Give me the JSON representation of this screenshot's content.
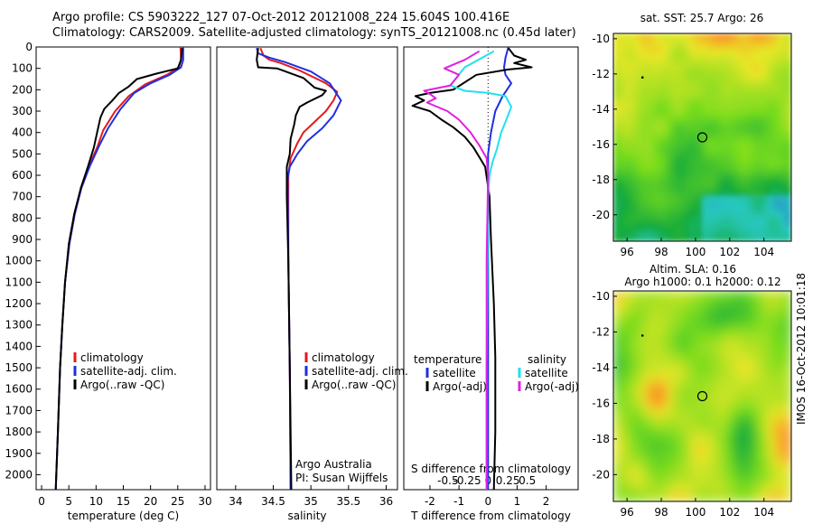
{
  "title_line1": "Argo profile: CS 5903222_127 07-Oct-2012 20121008_224 15.604S 100.416E",
  "title_line2": "Climatology: CARS2009. Satellite-adjusted climatology: synTS_20121008.nc (0.45d later)",
  "stamp": "IMOS 16-Oct-2012 10:01:18",
  "colors": {
    "climatology": "#e41a1c",
    "satellite": "#1f2fe0",
    "argo": "#000000",
    "satellite_s": "#22e0f0",
    "argo_s": "#e020e0"
  },
  "chart_data": [
    {
      "type": "line",
      "id": "temperature",
      "xlabel": "temperature (deg C)",
      "xlim": [
        -1,
        31
      ],
      "ylim": [
        2070,
        0
      ],
      "xticks": [
        0,
        5,
        10,
        15,
        20,
        25,
        30
      ],
      "yticks": [
        0,
        100,
        200,
        300,
        400,
        500,
        600,
        700,
        800,
        900,
        1000,
        1100,
        1200,
        1300,
        1400,
        1500,
        1600,
        1700,
        1800,
        1900,
        2000
      ],
      "legend": [
        "climatology",
        "satellite-adj. clim.",
        "Argo(..raw -QC)"
      ],
      "series": [
        {
          "name": "climatology",
          "color": "climatology",
          "points": [
            [
              25.5,
              0
            ],
            [
              25.6,
              60
            ],
            [
              25.2,
              95
            ],
            [
              23,
              130
            ],
            [
              19,
              175
            ],
            [
              16,
              230
            ],
            [
              13.5,
              300
            ],
            [
              11.3,
              390
            ],
            [
              10.2,
              470
            ],
            [
              8.6,
              560
            ],
            [
              7.2,
              660
            ],
            [
              6.1,
              780
            ],
            [
              5.1,
              920
            ],
            [
              4.3,
              1100
            ],
            [
              3.8,
              1300
            ],
            [
              3.4,
              1500
            ],
            [
              3.0,
              1800
            ],
            [
              2.6,
              2070
            ]
          ]
        },
        {
          "name": "satellite-adj. clim.",
          "color": "satellite",
          "points": [
            [
              26.0,
              0
            ],
            [
              26.0,
              60
            ],
            [
              25.6,
              95
            ],
            [
              23.5,
              130
            ],
            [
              20,
              170
            ],
            [
              17,
              215
            ],
            [
              14.5,
              290
            ],
            [
              12.2,
              380
            ],
            [
              10.6,
              460
            ],
            [
              8.8,
              560
            ],
            [
              7.3,
              660
            ],
            [
              6.1,
              780
            ],
            [
              5.1,
              920
            ],
            [
              4.3,
              1100
            ],
            [
              3.8,
              1300
            ],
            [
              3.4,
              1500
            ],
            [
              3.0,
              1800
            ],
            [
              2.6,
              2070
            ]
          ]
        },
        {
          "name": "Argo(..raw -QC)",
          "color": "argo",
          "points": [
            [
              25.8,
              5
            ],
            [
              25.6,
              60
            ],
            [
              25.0,
              100
            ],
            [
              21,
              125
            ],
            [
              17.5,
              150
            ],
            [
              16,
              185
            ],
            [
              14.2,
              215
            ],
            [
              13,
              250
            ],
            [
              11.5,
              290
            ],
            [
              10.8,
              330
            ],
            [
              10.2,
              400
            ],
            [
              9.6,
              470
            ],
            [
              8.5,
              560
            ],
            [
              7.2,
              660
            ],
            [
              6.0,
              780
            ],
            [
              5.0,
              920
            ],
            [
              4.3,
              1100
            ],
            [
              3.8,
              1300
            ],
            [
              3.4,
              1500
            ],
            [
              3.0,
              1800
            ],
            [
              2.6,
              2070
            ]
          ]
        }
      ]
    },
    {
      "type": "line",
      "id": "salinity",
      "xlabel": "salinity",
      "xlim": [
        33.75,
        36.15
      ],
      "ylim": [
        2070,
        0
      ],
      "xticks": [
        34,
        34.5,
        35,
        35.5,
        36
      ],
      "legend": [
        "climatology",
        "satellite-adj. clim.",
        "Argo(..raw -QC)"
      ],
      "notes": [
        "Argo Australia",
        "PI: Susan Wijffels"
      ],
      "series": [
        {
          "name": "climatology",
          "color": "climatology",
          "points": [
            [
              34.33,
              5
            ],
            [
              34.37,
              40
            ],
            [
              34.45,
              60
            ],
            [
              34.6,
              75
            ],
            [
              34.85,
              110
            ],
            [
              35.2,
              170
            ],
            [
              35.35,
              210
            ],
            [
              35.3,
              250
            ],
            [
              35.2,
              300
            ],
            [
              35.05,
              350
            ],
            [
              34.9,
              400
            ],
            [
              34.82,
              450
            ],
            [
              34.73,
              520
            ],
            [
              34.7,
              600
            ],
            [
              34.7,
              1000
            ],
            [
              34.72,
              1500
            ],
            [
              34.73,
              2070
            ]
          ]
        },
        {
          "name": "satellite-adj. clim.",
          "color": "satellite",
          "points": [
            [
              34.28,
              5
            ],
            [
              34.3,
              30
            ],
            [
              34.45,
              50
            ],
            [
              34.65,
              70
            ],
            [
              35.0,
              115
            ],
            [
              35.25,
              170
            ],
            [
              35.4,
              250
            ],
            [
              35.3,
              320
            ],
            [
              35.15,
              380
            ],
            [
              34.95,
              440
            ],
            [
              34.82,
              500
            ],
            [
              34.72,
              560
            ],
            [
              34.69,
              620
            ],
            [
              34.7,
              1000
            ],
            [
              34.72,
              1500
            ],
            [
              34.73,
              2070
            ]
          ]
        },
        {
          "name": "Argo(..raw -QC)",
          "color": "argo",
          "points": [
            [
              34.3,
              5
            ],
            [
              34.28,
              60
            ],
            [
              34.3,
              95
            ],
            [
              34.55,
              100
            ],
            [
              34.9,
              145
            ],
            [
              35.05,
              190
            ],
            [
              35.2,
              205
            ],
            [
              35.15,
              225
            ],
            [
              34.95,
              260
            ],
            [
              34.85,
              280
            ],
            [
              34.8,
              320
            ],
            [
              34.78,
              360
            ],
            [
              34.73,
              430
            ],
            [
              34.72,
              500
            ],
            [
              34.68,
              560
            ],
            [
              34.68,
              700
            ],
            [
              34.7,
              1000
            ],
            [
              34.72,
              1500
            ],
            [
              34.74,
              2070
            ]
          ]
        }
      ]
    },
    {
      "type": "line",
      "id": "differences",
      "xlabel": "T difference from climatology",
      "xlabel_top": "S difference from climatology",
      "xlim": [
        -2.9,
        3.1
      ],
      "ylim": [
        2070,
        0
      ],
      "xticks": [
        -2,
        -1,
        0,
        1,
        2
      ],
      "s_ticks": [
        "-0.5",
        "-0.25",
        "0",
        "0.25",
        "0.5"
      ],
      "legend_temperature": [
        "temperature",
        "satellite",
        "Argo(-adj)"
      ],
      "legend_salinity": [
        "salinity",
        "satellite",
        "Argo(-adj)"
      ],
      "series": [
        {
          "name": "T satellite",
          "color": "satellite",
          "points": [
            [
              0.7,
              0
            ],
            [
              0.6,
              50
            ],
            [
              0.55,
              95
            ],
            [
              0.6,
              130
            ],
            [
              0.8,
              170
            ],
            [
              0.5,
              230
            ],
            [
              0.25,
              300
            ],
            [
              0.1,
              400
            ],
            [
              0.0,
              500
            ],
            [
              0.0,
              700
            ],
            [
              0.0,
              1000
            ],
            [
              0.0,
              2070
            ]
          ]
        },
        {
          "name": "T Argo(-adj)",
          "color": "argo",
          "points": [
            [
              0.7,
              5
            ],
            [
              0.9,
              40
            ],
            [
              1.3,
              60
            ],
            [
              0.9,
              75
            ],
            [
              1.5,
              95
            ],
            [
              0.7,
              105
            ],
            [
              -0.4,
              130
            ],
            [
              -1.2,
              200
            ],
            [
              -2.0,
              215
            ],
            [
              -2.5,
              230
            ],
            [
              -2.2,
              250
            ],
            [
              -2.6,
              275
            ],
            [
              -2.0,
              300
            ],
            [
              -1.6,
              340
            ],
            [
              -1.2,
              375
            ],
            [
              -0.8,
              420
            ],
            [
              -0.5,
              470
            ],
            [
              -0.1,
              560
            ],
            [
              0.05,
              700
            ],
            [
              0.1,
              900
            ],
            [
              0.2,
              1200
            ],
            [
              0.25,
              1450
            ],
            [
              0.25,
              1800
            ],
            [
              0.2,
              2070
            ]
          ]
        },
        {
          "name": "S satellite",
          "color": "satellite_s",
          "points": [
            [
              0.2,
              20
            ],
            [
              -0.8,
              95
            ],
            [
              -1.3,
              180
            ],
            [
              -0.8,
              205
            ],
            [
              0.0,
              215
            ],
            [
              0.6,
              230
            ],
            [
              0.8,
              280
            ],
            [
              0.6,
              350
            ],
            [
              0.45,
              400
            ],
            [
              0.3,
              480
            ],
            [
              0.15,
              540
            ],
            [
              0.05,
              600
            ],
            [
              0.0,
              700
            ],
            [
              -0.02,
              1000
            ],
            [
              -0.05,
              1500
            ],
            [
              -0.05,
              2070
            ]
          ]
        },
        {
          "name": "S Argo(-adj)",
          "color": "argo_s",
          "points": [
            [
              -0.3,
              20
            ],
            [
              -0.8,
              60
            ],
            [
              -1.5,
              100
            ],
            [
              -1.0,
              130
            ],
            [
              -1.3,
              180
            ],
            [
              -2.2,
              205
            ],
            [
              -2.0,
              220
            ],
            [
              -1.8,
              240
            ],
            [
              -2.1,
              260
            ],
            [
              -1.4,
              300
            ],
            [
              -1.0,
              340
            ],
            [
              -0.6,
              400
            ],
            [
              -0.3,
              460
            ],
            [
              -0.05,
              520
            ],
            [
              0.0,
              600
            ],
            [
              -0.05,
              1000
            ],
            [
              -0.05,
              2070
            ]
          ]
        }
      ]
    },
    {
      "type": "heatmap",
      "id": "sst",
      "title": "sat. SST: 25.7 Argo: 26",
      "xticks": [
        "96",
        "98",
        "100",
        "102",
        "104"
      ],
      "yticks": [
        "-10",
        "-12",
        "-14",
        "-16",
        "-18",
        "-20"
      ],
      "marker": {
        "lon": 100.4,
        "lat": -15.6
      }
    },
    {
      "type": "heatmap",
      "id": "sla",
      "title": "Altim. SLA: 0.16",
      "subtitle": "Argo h1000: 0.1 h2000: 0.12",
      "xticks": [
        "96",
        "98",
        "100",
        "102",
        "104"
      ],
      "yticks": [
        "-10",
        "-12",
        "-14",
        "-16",
        "-18",
        "-20"
      ],
      "marker": {
        "lon": 100.4,
        "lat": -15.6
      }
    }
  ]
}
